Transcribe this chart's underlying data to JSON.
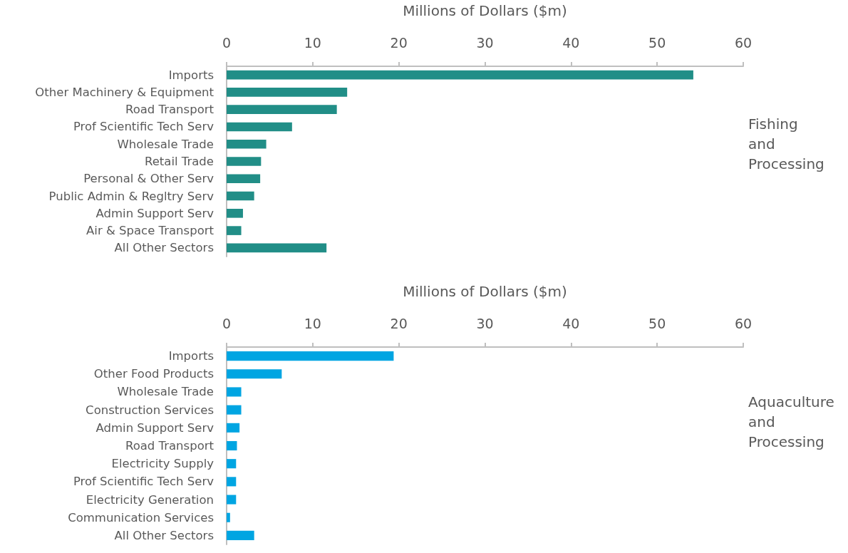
{
  "chart_data": [
    {
      "type": "bar",
      "orientation": "horizontal",
      "xlabel": "Millions of Dollars ($m)",
      "annotations": [
        "Fishing and Processing"
      ],
      "categories": [
        "Imports",
        "Other Machinery & Equipment",
        "Road Transport",
        "Prof Scientific Tech Serv",
        "Wholesale Trade",
        "Retail Trade",
        "Personal & Other Serv",
        "Public Admin & Regltry Serv",
        "Admin Support Serv",
        "Air & Space Transport",
        "All Other Sectors"
      ],
      "values": [
        54.2,
        14.0,
        12.8,
        7.6,
        4.6,
        4.0,
        3.9,
        3.2,
        1.9,
        1.7,
        11.6
      ],
      "color": "#218e87",
      "xlim": [
        0,
        60
      ],
      "xticks": [
        0,
        10,
        20,
        30,
        40,
        50,
        60
      ],
      "grid": false
    },
    {
      "type": "bar",
      "orientation": "horizontal",
      "xlabel": "Millions of Dollars ($m)",
      "annotations": [
        "Aquaculture and Processing"
      ],
      "categories": [
        "Imports",
        "Other Food Products",
        "Wholesale Trade",
        "Construction Services",
        "Admin Support Serv",
        "Road Transport",
        "Electricity Supply",
        "Prof Scientific Tech Serv",
        "Electricity Generation",
        "Communication Services",
        "All Other Sectors"
      ],
      "values": [
        19.4,
        6.4,
        1.7,
        1.7,
        1.5,
        1.2,
        1.1,
        1.1,
        1.1,
        0.4,
        3.2
      ],
      "color": "#00a5e2",
      "xlim": [
        0,
        60
      ],
      "xticks": [
        0,
        10,
        20,
        30,
        40,
        50,
        60
      ],
      "grid": false
    }
  ]
}
